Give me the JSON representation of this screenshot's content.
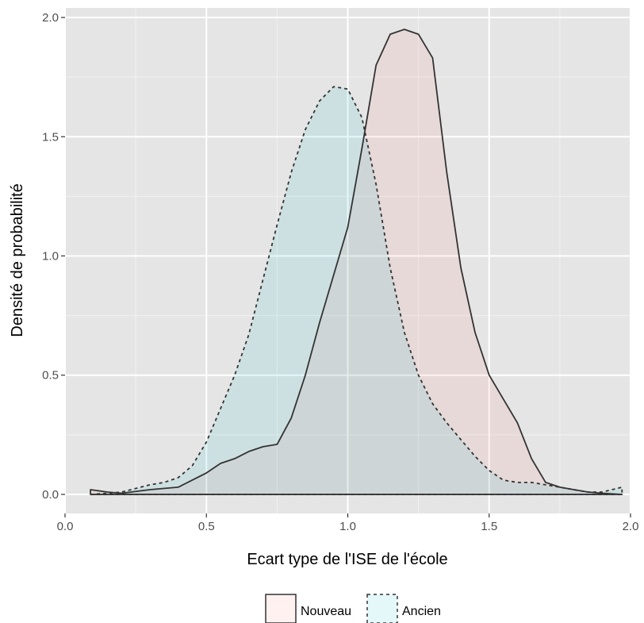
{
  "chart_data": {
    "type": "area",
    "title": "",
    "xlabel": "Ecart type de l'ISE de l'école",
    "ylabel": "Densité de probabilité",
    "xlim": [
      0,
      2.0
    ],
    "ylim": [
      -0.08,
      2.04
    ],
    "x_ticks": [
      0.0,
      0.5,
      1.0,
      1.5,
      2.0
    ],
    "x_tick_labels": [
      "0.0",
      "0.5",
      "1.0",
      "1.5",
      "2.0"
    ],
    "y_ticks": [
      0.0,
      0.5,
      1.0,
      1.5,
      2.0
    ],
    "y_tick_labels": [
      "0.0",
      "0.5",
      "1.0",
      "1.5",
      "2.0"
    ],
    "grid": true,
    "legend_position": "bottom",
    "series": [
      {
        "name": "Nouveau",
        "fill": "#f8766d",
        "line_style": "solid",
        "x": [
          0.09,
          0.15,
          0.2,
          0.3,
          0.4,
          0.45,
          0.5,
          0.55,
          0.6,
          0.65,
          0.7,
          0.75,
          0.8,
          0.85,
          0.9,
          0.95,
          1.0,
          1.05,
          1.1,
          1.15,
          1.2,
          1.25,
          1.3,
          1.35,
          1.4,
          1.45,
          1.5,
          1.55,
          1.6,
          1.65,
          1.7,
          1.75,
          1.8,
          1.85,
          1.9,
          1.97
        ],
        "y": [
          0.02,
          0.01,
          0.005,
          0.02,
          0.03,
          0.06,
          0.09,
          0.13,
          0.15,
          0.18,
          0.2,
          0.21,
          0.32,
          0.5,
          0.72,
          0.92,
          1.12,
          1.45,
          1.8,
          1.93,
          1.95,
          1.93,
          1.83,
          1.35,
          0.95,
          0.68,
          0.5,
          0.4,
          0.3,
          0.15,
          0.05,
          0.03,
          0.02,
          0.01,
          0.005,
          0.0
        ]
      },
      {
        "name": "Ancien",
        "fill": "#00bfc4",
        "line_style": "dashed",
        "x": [
          0.09,
          0.15,
          0.2,
          0.25,
          0.3,
          0.35,
          0.4,
          0.45,
          0.5,
          0.55,
          0.6,
          0.65,
          0.7,
          0.75,
          0.8,
          0.85,
          0.9,
          0.95,
          1.0,
          1.05,
          1.1,
          1.15,
          1.2,
          1.25,
          1.3,
          1.35,
          1.4,
          1.45,
          1.5,
          1.55,
          1.6,
          1.65,
          1.7,
          1.75,
          1.8,
          1.85,
          1.9,
          1.97
        ],
        "y": [
          0.0,
          0.005,
          0.01,
          0.025,
          0.04,
          0.05,
          0.07,
          0.12,
          0.22,
          0.36,
          0.5,
          0.67,
          0.9,
          1.13,
          1.35,
          1.53,
          1.65,
          1.71,
          1.7,
          1.58,
          1.3,
          0.95,
          0.68,
          0.5,
          0.38,
          0.3,
          0.23,
          0.16,
          0.1,
          0.06,
          0.05,
          0.05,
          0.04,
          0.03,
          0.02,
          0.01,
          0.01,
          0.03
        ]
      }
    ]
  }
}
